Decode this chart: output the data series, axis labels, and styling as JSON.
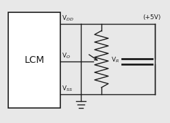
{
  "bg_color": "#e8e8e8",
  "line_color": "#1a1a1a",
  "lcm_label": "LCM",
  "vdd_label": "V$_{DD}$",
  "vo_label": "V$_{O}$",
  "vss_label": "V$_{SS}$",
  "vr_label": "V$_{R}$",
  "plus5v_label": "(+5V)",
  "small_fontsize": 6.5,
  "lcm_fontsize": 10
}
